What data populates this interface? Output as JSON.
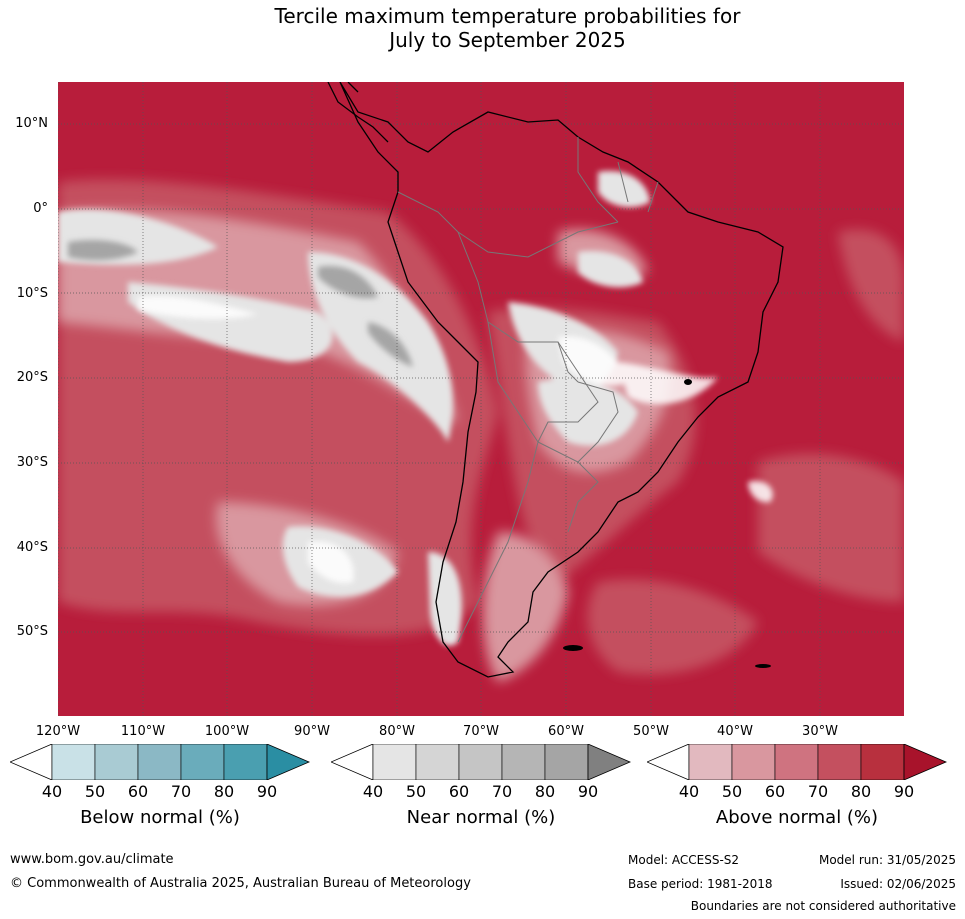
{
  "title_line1": "Tercile maximum temperature probabilities for",
  "title_line2": "July to September 2025",
  "lat_labels": [
    "10°N",
    "0°",
    "10°S",
    "20°S",
    "30°S",
    "40°S",
    "50°S"
  ],
  "lon_labels": [
    "120°W",
    "110°W",
    "100°W",
    "90°W",
    "80°W",
    "70°W",
    "60°W",
    "50°W",
    "40°W",
    "30°W"
  ],
  "colorbars": [
    {
      "title": "Below normal (%)",
      "ticks": [
        "40",
        "50",
        "60",
        "70",
        "80",
        "90"
      ],
      "colors": [
        "#ffffff",
        "#c9e1e7",
        "#a9cbd3",
        "#8bb8c5",
        "#6aacbb",
        "#4a9fb0",
        "#2a8ea3"
      ]
    },
    {
      "title": "Near normal (%)",
      "ticks": [
        "40",
        "50",
        "60",
        "70",
        "80",
        "90"
      ],
      "colors": [
        "#ffffff",
        "#e5e5e5",
        "#d5d5d5",
        "#c5c5c5",
        "#b5b5b5",
        "#a5a5a5",
        "#808080"
      ]
    },
    {
      "title": "Above normal (%)",
      "ticks": [
        "40",
        "50",
        "60",
        "70",
        "80",
        "90"
      ],
      "colors": [
        "#ffffff",
        "#e2b9bf",
        "#d9979f",
        "#cf7380",
        "#c4505f",
        "#b8303e",
        "#a8132b"
      ]
    }
  ],
  "footer": {
    "website": "www.bom.gov.au/climate",
    "copyright": "© Commonwealth of Australia 2025, Australian Bureau of Meteorology",
    "model": "Model: ACCESS-S2",
    "model_run": "Model run: 31/05/2025",
    "base_period": "Base period: 1981-2018",
    "issued": "Issued: 02/06/2025",
    "boundaries": "Boundaries are not considered authoritative"
  }
}
